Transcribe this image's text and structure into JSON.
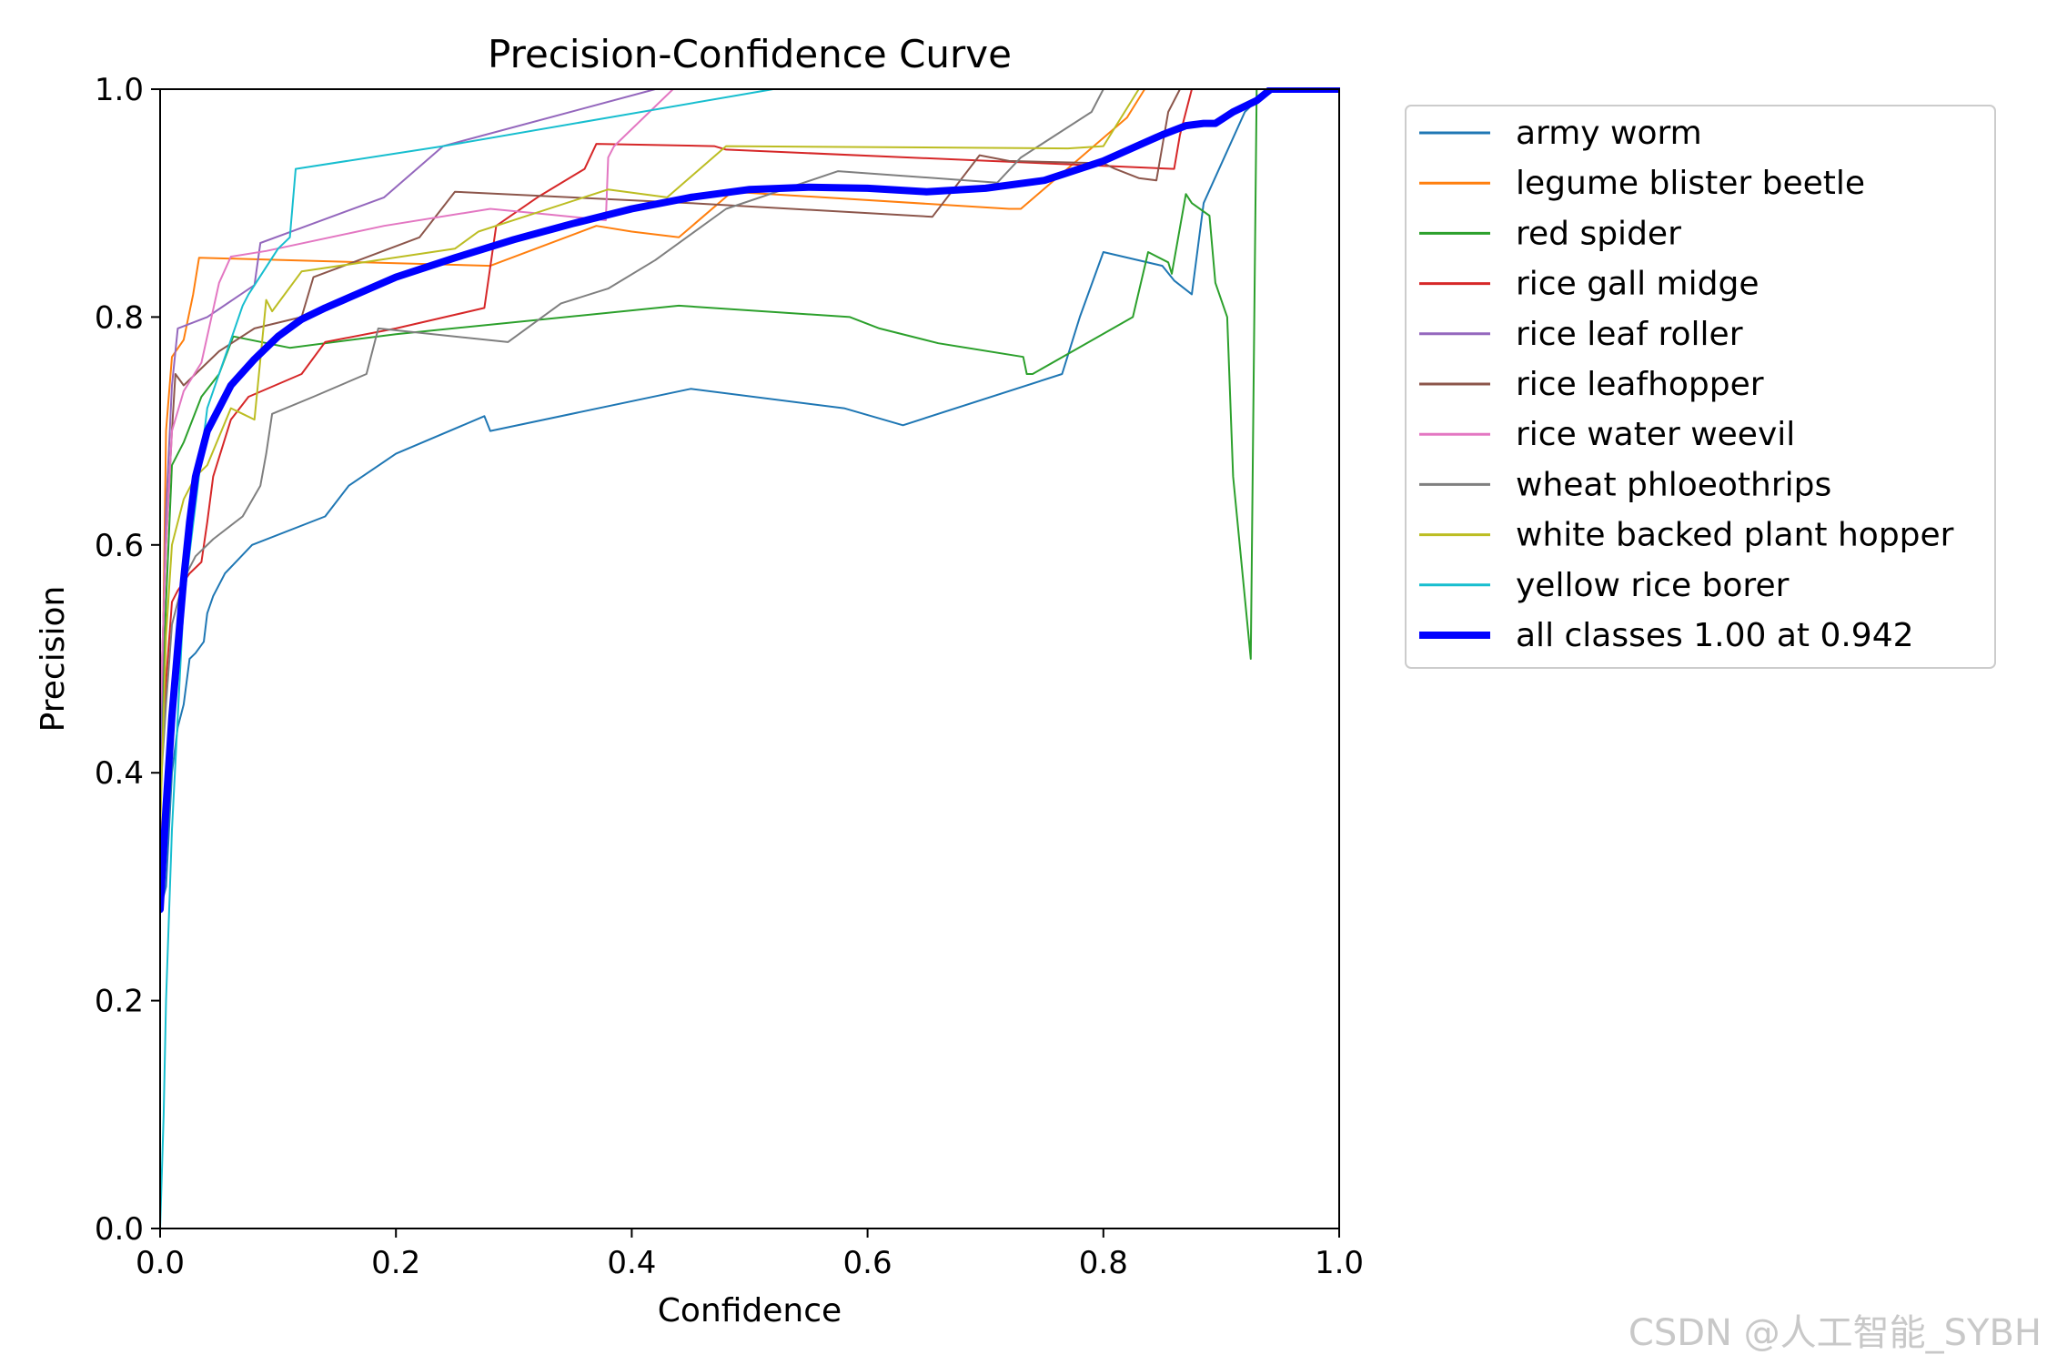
{
  "watermark": "CSDN @人工智能_SYBH",
  "chart_data": {
    "type": "line",
    "title": "Precision-Confidence Curve",
    "xlabel": "Confidence",
    "ylabel": "Precision",
    "xlim": [
      0,
      1
    ],
    "ylim": [
      0,
      1
    ],
    "xticks": [
      "0.0",
      "0.2",
      "0.4",
      "0.6",
      "0.8",
      "1.0"
    ],
    "yticks": [
      "0.0",
      "0.2",
      "0.4",
      "0.6",
      "0.8",
      "1.0"
    ],
    "grid": false,
    "legend_position": "outside-right",
    "series": [
      {
        "name": "army worm",
        "color": "#1f77b4",
        "width": 2,
        "x": [
          0.0,
          0.005,
          0.01,
          0.015,
          0.02,
          0.025,
          0.03,
          0.037,
          0.04,
          0.045,
          0.055,
          0.078,
          0.14,
          0.16,
          0.2,
          0.275,
          0.28,
          0.45,
          0.58,
          0.63,
          0.765,
          0.78,
          0.8,
          0.85,
          0.86,
          0.875,
          0.885,
          0.92,
          0.94,
          1.0
        ],
        "y": [
          0.28,
          0.3,
          0.4,
          0.44,
          0.46,
          0.5,
          0.505,
          0.515,
          0.54,
          0.555,
          0.575,
          0.6,
          0.625,
          0.652,
          0.68,
          0.713,
          0.7,
          0.737,
          0.72,
          0.705,
          0.75,
          0.8,
          0.857,
          0.845,
          0.832,
          0.82,
          0.9,
          0.98,
          1.0,
          1.0
        ]
      },
      {
        "name": "legume blister beetle",
        "color": "#ff7f0e",
        "width": 2,
        "x": [
          0.0,
          0.005,
          0.01,
          0.02,
          0.028,
          0.033,
          0.07,
          0.28,
          0.37,
          0.4,
          0.44,
          0.485,
          0.72,
          0.73,
          0.82,
          0.835,
          1.0
        ],
        "y": [
          0.33,
          0.7,
          0.765,
          0.78,
          0.82,
          0.852,
          0.851,
          0.845,
          0.88,
          0.875,
          0.87,
          0.91,
          0.895,
          0.895,
          0.975,
          1.0,
          1.0
        ]
      },
      {
        "name": "red spider",
        "color": "#2ca02c",
        "width": 2,
        "x": [
          0.0,
          0.005,
          0.01,
          0.02,
          0.035,
          0.05,
          0.062,
          0.11,
          0.2,
          0.44,
          0.585,
          0.61,
          0.66,
          0.732,
          0.735,
          0.74,
          0.825,
          0.838,
          0.855,
          0.858,
          0.87,
          0.875,
          0.89,
          0.895,
          0.905,
          0.91,
          0.925,
          0.93,
          0.935,
          1.0
        ],
        "y": [
          0.4,
          0.55,
          0.67,
          0.69,
          0.73,
          0.75,
          0.783,
          0.773,
          0.785,
          0.81,
          0.8,
          0.79,
          0.777,
          0.765,
          0.75,
          0.75,
          0.8,
          0.857,
          0.848,
          0.838,
          0.908,
          0.9,
          0.889,
          0.83,
          0.8,
          0.66,
          0.5,
          1.0,
          1.0,
          1.0
        ]
      },
      {
        "name": "rice gall midge",
        "color": "#d62728",
        "width": 2,
        "x": [
          0.0,
          0.005,
          0.01,
          0.015,
          0.025,
          0.035,
          0.04,
          0.045,
          0.06,
          0.075,
          0.12,
          0.14,
          0.2,
          0.275,
          0.285,
          0.32,
          0.36,
          0.37,
          0.47,
          0.48,
          0.86,
          0.865,
          0.875,
          1.0
        ],
        "y": [
          0.39,
          0.48,
          0.55,
          0.56,
          0.575,
          0.585,
          0.62,
          0.66,
          0.71,
          0.73,
          0.75,
          0.778,
          0.79,
          0.808,
          0.88,
          0.905,
          0.93,
          0.952,
          0.95,
          0.947,
          0.93,
          0.96,
          1.0,
          1.0
        ]
      },
      {
        "name": "rice leaf roller",
        "color": "#9467bd",
        "width": 2,
        "x": [
          0.0,
          0.005,
          0.01,
          0.015,
          0.04,
          0.08,
          0.085,
          0.19,
          0.24,
          0.42,
          0.46,
          1.0
        ],
        "y": [
          0.4,
          0.63,
          0.74,
          0.79,
          0.8,
          0.828,
          0.865,
          0.905,
          0.95,
          1.0,
          1.0,
          1.0
        ]
      },
      {
        "name": "rice leafhopper",
        "color": "#8c564b",
        "width": 2,
        "x": [
          0.0,
          0.005,
          0.01,
          0.013,
          0.02,
          0.05,
          0.08,
          0.12,
          0.13,
          0.22,
          0.25,
          0.45,
          0.655,
          0.695,
          0.72,
          0.8,
          0.81,
          0.83,
          0.845,
          0.855,
          0.865,
          1.0
        ],
        "y": [
          0.45,
          0.6,
          0.7,
          0.75,
          0.74,
          0.77,
          0.79,
          0.8,
          0.835,
          0.87,
          0.91,
          0.9,
          0.888,
          0.942,
          0.937,
          0.935,
          0.93,
          0.922,
          0.92,
          0.98,
          1.0,
          1.0
        ]
      },
      {
        "name": "rice water weevil",
        "color": "#e377c2",
        "width": 2,
        "x": [
          0.0,
          0.005,
          0.01,
          0.02,
          0.035,
          0.05,
          0.06,
          0.09,
          0.19,
          0.28,
          0.33,
          0.378,
          0.38,
          0.385,
          0.435,
          1.0
        ],
        "y": [
          0.45,
          0.6,
          0.7,
          0.735,
          0.76,
          0.83,
          0.853,
          0.858,
          0.88,
          0.895,
          0.89,
          0.885,
          0.94,
          0.95,
          1.0,
          1.0
        ]
      },
      {
        "name": "wheat phloeothrips",
        "color": "#7f7f7f",
        "width": 2,
        "x": [
          0.0,
          0.005,
          0.01,
          0.02,
          0.03,
          0.045,
          0.07,
          0.085,
          0.09,
          0.095,
          0.13,
          0.175,
          0.185,
          0.295,
          0.34,
          0.38,
          0.42,
          0.48,
          0.575,
          0.71,
          0.73,
          0.79,
          0.8,
          1.0
        ],
        "y": [
          0.38,
          0.46,
          0.53,
          0.57,
          0.59,
          0.605,
          0.625,
          0.652,
          0.68,
          0.715,
          0.73,
          0.75,
          0.79,
          0.778,
          0.812,
          0.825,
          0.85,
          0.895,
          0.928,
          0.918,
          0.94,
          0.98,
          1.0,
          1.0
        ]
      },
      {
        "name": "white backed plant hopper",
        "color": "#bcbd22",
        "width": 2,
        "x": [
          0.0,
          0.005,
          0.01,
          0.02,
          0.03,
          0.04,
          0.06,
          0.07,
          0.08,
          0.09,
          0.095,
          0.12,
          0.25,
          0.27,
          0.38,
          0.43,
          0.48,
          0.77,
          0.8,
          0.83,
          1.0
        ],
        "y": [
          0.35,
          0.52,
          0.6,
          0.64,
          0.66,
          0.67,
          0.72,
          0.715,
          0.71,
          0.815,
          0.805,
          0.84,
          0.86,
          0.875,
          0.912,
          0.905,
          0.95,
          0.948,
          0.95,
          1.0,
          1.0
        ]
      },
      {
        "name": "yellow rice borer",
        "color": "#17becf",
        "width": 2,
        "x": [
          0.0,
          0.003,
          0.005,
          0.01,
          0.02,
          0.04,
          0.06,
          0.07,
          0.075,
          0.1,
          0.11,
          0.115,
          0.24,
          0.52,
          1.0
        ],
        "y": [
          0.0,
          0.1,
          0.2,
          0.35,
          0.55,
          0.72,
          0.78,
          0.81,
          0.82,
          0.86,
          0.87,
          0.93,
          0.95,
          1.0,
          1.0
        ]
      },
      {
        "name": "all classes 1.00 at 0.942",
        "color": "#0000ff",
        "width": 8,
        "x": [
          0.0,
          0.005,
          0.01,
          0.015,
          0.02,
          0.025,
          0.03,
          0.04,
          0.05,
          0.06,
          0.08,
          0.1,
          0.12,
          0.14,
          0.16,
          0.2,
          0.25,
          0.3,
          0.35,
          0.4,
          0.45,
          0.5,
          0.55,
          0.6,
          0.65,
          0.7,
          0.75,
          0.8,
          0.85,
          0.87,
          0.885,
          0.895,
          0.91,
          0.93,
          0.942,
          0.96,
          1.0
        ],
        "y": [
          0.28,
          0.37,
          0.45,
          0.51,
          0.57,
          0.62,
          0.66,
          0.7,
          0.72,
          0.74,
          0.763,
          0.783,
          0.798,
          0.808,
          0.817,
          0.835,
          0.852,
          0.868,
          0.882,
          0.895,
          0.905,
          0.912,
          0.914,
          0.913,
          0.91,
          0.913,
          0.92,
          0.937,
          0.96,
          0.968,
          0.97,
          0.97,
          0.98,
          0.99,
          1.0,
          1.0,
          1.0
        ]
      }
    ]
  }
}
